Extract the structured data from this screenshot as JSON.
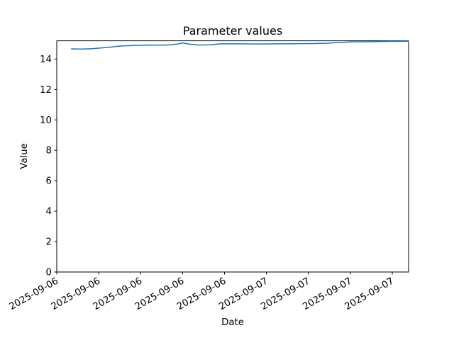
{
  "figure": {
    "background": "#ffffff"
  },
  "chart_data": {
    "type": "line",
    "title": "Parameter values",
    "xlabel": "Date",
    "ylabel": "Value",
    "grid": false,
    "legend": false,
    "axis_color": "#000000",
    "line_color": "#1f77b4",
    "ylim": [
      0,
      15.2
    ],
    "y_tick_values": [
      0,
      2,
      4,
      6,
      8,
      10,
      12,
      14
    ],
    "y_tick_labels": [
      "0",
      "2",
      "4",
      "6",
      "8",
      "10",
      "12",
      "14"
    ],
    "x_tick_labels": [
      "2025-09-06",
      "2025-09-06",
      "2025-09-06",
      "2025-09-06",
      "2025-09-06",
      "2025-09-07",
      "2025-09-07",
      "2025-09-07",
      "2025-09-07"
    ],
    "x_tick_rotation_deg": 30,
    "series": [
      {
        "name": "series-1",
        "x_unit": "axis-fraction",
        "points": [
          [
            0.042,
            14.67
          ],
          [
            0.07,
            14.66
          ],
          [
            0.1,
            14.68
          ],
          [
            0.125,
            14.73
          ],
          [
            0.15,
            14.78
          ],
          [
            0.175,
            14.84
          ],
          [
            0.2,
            14.88
          ],
          [
            0.23,
            14.9
          ],
          [
            0.26,
            14.92
          ],
          [
            0.29,
            14.91
          ],
          [
            0.32,
            14.93
          ],
          [
            0.345,
            14.99
          ],
          [
            0.357,
            15.06
          ],
          [
            0.38,
            14.97
          ],
          [
            0.405,
            14.92
          ],
          [
            0.435,
            14.94
          ],
          [
            0.465,
            15.0
          ],
          [
            0.52,
            15.0
          ],
          [
            0.57,
            14.99
          ],
          [
            0.62,
            15.0
          ],
          [
            0.67,
            15.01
          ],
          [
            0.73,
            15.02
          ],
          [
            0.77,
            15.04
          ],
          [
            0.8,
            15.09
          ],
          [
            0.84,
            15.13
          ],
          [
            0.89,
            15.14
          ],
          [
            0.94,
            15.16
          ],
          [
            1.0,
            15.17
          ]
        ]
      }
    ]
  }
}
